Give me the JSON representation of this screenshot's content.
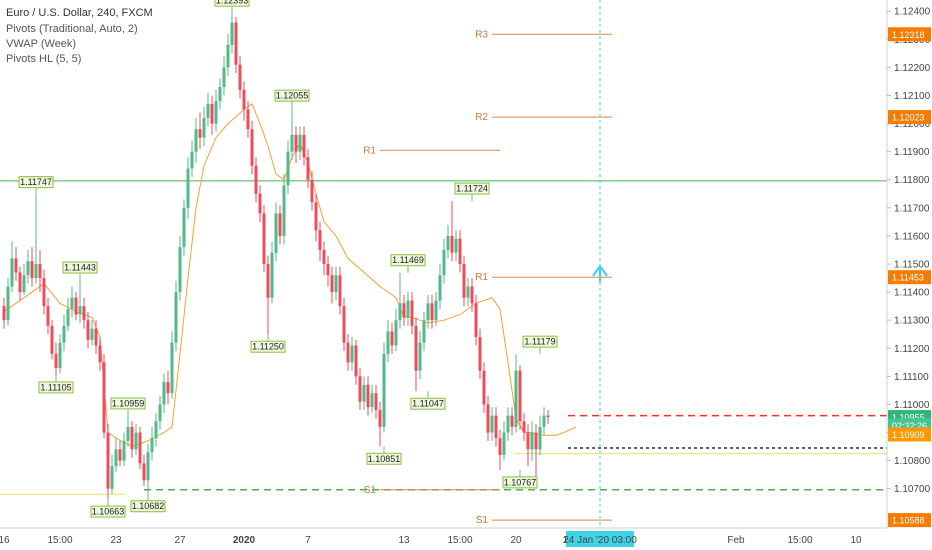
{
  "legend": {
    "title": "Euro / U.S. Dollar, 240, FXCM",
    "lines": [
      "Pivots (Traditional, Auto, 2)",
      "VWAP (Week)",
      "Pivots HL (5, 5)"
    ]
  },
  "colors": {
    "bull": "#53b987",
    "bear": "#eb4d5c",
    "vwap": "#f7a035",
    "pivot": "#d8874a",
    "pivot_label": "#c97a3a",
    "green_line": "#4caf50",
    "red_line": "#ff2a2a",
    "yellow_line": "#f5e05a",
    "cyan": "#3fd3e6",
    "hl_bg": "#eef8de",
    "hl_border": "#8cbf3f",
    "price_tag": "#f57c00",
    "last_price_tag": "#2eb67d",
    "countdown_tag": "#48c492",
    "prev_tag": "#ff9800"
  },
  "chart_data": {
    "type": "candlestick",
    "title": "Euro / U.S. Dollar, 240, FXCM",
    "ylim": [
      1.1056,
      1.1244
    ],
    "y_ticks": [
      1.107,
      1.108,
      1.109,
      1.11,
      1.111,
      1.112,
      1.113,
      1.114,
      1.115,
      1.116,
      1.117,
      1.118,
      1.119,
      1.12,
      1.121,
      1.122,
      1.123,
      1.124
    ],
    "y_tick_labels": [
      "1.10700",
      "1.10800",
      "1.10900",
      "1.11000",
      "1.11100",
      "1.11200",
      "1.11300",
      "1.11400",
      "1.11500",
      "1.11600",
      "1.11700",
      "1.11800",
      "1.11900",
      "1.12000",
      "1.12100",
      "1.12200",
      "1.12300",
      "1.12400"
    ],
    "x_tick_labels": [
      "16",
      "15:00",
      "23",
      "27",
      "2020",
      "7",
      "13",
      "15:00",
      "20",
      "15",
      "Feb",
      "15:00",
      "10"
    ],
    "x_tick_index": [
      0,
      14,
      28,
      44,
      60,
      76,
      100,
      114,
      128,
      141,
      183,
      199,
      213
    ],
    "price_axis_tags": [
      {
        "label": "1.12318",
        "value": 1.12318,
        "kind": "pivot"
      },
      {
        "label": "1.12023",
        "value": 1.12023,
        "kind": "pivot"
      },
      {
        "label": "1.11453",
        "value": 1.11453,
        "kind": "pivot"
      },
      {
        "label": "1.10955",
        "value": 1.10955,
        "kind": "last"
      },
      {
        "label": "02:32:26",
        "value": 1.10925,
        "kind": "countdown"
      },
      {
        "label": "1.10909",
        "value": 1.10893,
        "kind": "prev"
      },
      {
        "label": "1.10588",
        "value": 1.10588,
        "kind": "pivot"
      }
    ],
    "pivots": [
      {
        "label": "R3",
        "value": 1.12318,
        "from": 122,
        "to": 152
      },
      {
        "label": "R2",
        "value": 1.12023,
        "from": 122,
        "to": 152
      },
      {
        "label": "R1",
        "value": 1.11453,
        "from": 122,
        "to": 152
      },
      {
        "label": "S1",
        "value": 1.10588,
        "from": 122,
        "to": 152
      },
      {
        "label": "R1",
        "value": 1.11905,
        "from": 94,
        "to": 124
      },
      {
        "label": "S1",
        "value": 1.10696,
        "from": 94,
        "to": 124
      }
    ],
    "horizontal_lines": [
      {
        "value": 1.11796,
        "color": "green_line",
        "dash": false,
        "from": 0
      },
      {
        "value": 1.10696,
        "color": "green_line",
        "dash": true,
        "from": 35
      },
      {
        "value": 1.1096,
        "color": "red_line",
        "dash": true,
        "from": 141
      },
      {
        "value": 1.10845,
        "color": "navy",
        "dash": true,
        "from": 141
      },
      {
        "value": 1.10825,
        "color": "yellow_line",
        "dash": false,
        "from": 128
      },
      {
        "value": 1.1068,
        "color": "yellow_line",
        "dash": false,
        "from": 0,
        "to": 30
      }
    ],
    "pivot_hl": [
      {
        "label": "1.11747",
        "i": 8,
        "value": 1.11747,
        "pos": "above"
      },
      {
        "label": "1.11443",
        "i": 19,
        "value": 1.11443,
        "pos": "above"
      },
      {
        "label": "1.11105",
        "i": 13,
        "value": 1.11105,
        "pos": "below"
      },
      {
        "label": "1.10959",
        "i": 31,
        "value": 1.10959,
        "pos": "above"
      },
      {
        "label": "1.10663",
        "i": 26,
        "value": 1.10663,
        "pos": "below"
      },
      {
        "label": "1.10682",
        "i": 36,
        "value": 1.10682,
        "pos": "below"
      },
      {
        "label": "1.12393",
        "i": 57,
        "value": 1.12393,
        "pos": "above"
      },
      {
        "label": "1.11250",
        "i": 66,
        "value": 1.1125,
        "pos": "below"
      },
      {
        "label": "1.12055",
        "i": 72,
        "value": 1.12055,
        "pos": "above"
      },
      {
        "label": "1.11469",
        "i": 101,
        "value": 1.11469,
        "pos": "above"
      },
      {
        "label": "1.10851",
        "i": 95,
        "value": 1.10851,
        "pos": "below"
      },
      {
        "label": "1.11047",
        "i": 106,
        "value": 1.11047,
        "pos": "below"
      },
      {
        "label": "1.11724",
        "i": 117,
        "value": 1.11724,
        "pos": "above"
      },
      {
        "label": "1.10767",
        "i": 129,
        "value": 1.10767,
        "pos": "below"
      },
      {
        "label": "1.11179",
        "i": 134,
        "value": 1.11179,
        "pos": "above"
      }
    ],
    "cursor": {
      "label": "24 Jan '20  03:00",
      "i": 149
    },
    "vwap": [
      [
        0,
        1.1133
      ],
      [
        5,
        1.1138
      ],
      [
        10,
        1.1143
      ],
      [
        14,
        1.1136
      ],
      [
        18,
        1.1133
      ],
      [
        22,
        1.1131
      ],
      [
        24,
        1.1124
      ],
      [
        26,
        1.109
      ],
      [
        28,
        1.1088
      ],
      [
        32,
        1.1085
      ],
      [
        36,
        1.1087
      ],
      [
        40,
        1.109
      ],
      [
        42,
        1.1092
      ],
      [
        44,
        1.1118
      ],
      [
        46,
        1.1145
      ],
      [
        48,
        1.117
      ],
      [
        50,
        1.1185
      ],
      [
        53,
        1.1195
      ],
      [
        56,
        1.12
      ],
      [
        60,
        1.1205
      ],
      [
        62,
        1.1207
      ],
      [
        64,
        1.12
      ],
      [
        66,
        1.1192
      ],
      [
        68,
        1.1182
      ],
      [
        70,
        1.118
      ],
      [
        72,
        1.1188
      ],
      [
        74,
        1.1193
      ],
      [
        76,
        1.1186
      ],
      [
        78,
        1.1175
      ],
      [
        80,
        1.1165
      ],
      [
        83,
        1.116
      ],
      [
        86,
        1.1152
      ],
      [
        90,
        1.1147
      ],
      [
        94,
        1.1142
      ],
      [
        98,
        1.1138
      ],
      [
        100,
        1.1131
      ],
      [
        102,
        1.1131
      ],
      [
        104,
        1.113
      ],
      [
        106,
        1.1129
      ],
      [
        110,
        1.113
      ],
      [
        114,
        1.1132
      ],
      [
        118,
        1.1136
      ],
      [
        122,
        1.1138
      ],
      [
        124,
        1.1134
      ],
      [
        126,
        1.1115
      ],
      [
        128,
        1.1095
      ],
      [
        130,
        1.109
      ],
      [
        132,
        1.109
      ],
      [
        134,
        1.1089
      ],
      [
        138,
        1.1089
      ],
      [
        140,
        1.109
      ],
      [
        143,
        1.1092
      ]
    ],
    "candles": [
      [
        1.1135,
        1.113,
        1.1138,
        1.1127
      ],
      [
        1.113,
        1.1142,
        1.1145,
        1.1128
      ],
      [
        1.1142,
        1.1152,
        1.1158,
        1.114
      ],
      [
        1.1152,
        1.1147,
        1.1156,
        1.1144
      ],
      [
        1.1147,
        1.114,
        1.1149,
        1.1137
      ],
      [
        1.114,
        1.1146,
        1.115,
        1.1139
      ],
      [
        1.1146,
        1.1151,
        1.1155,
        1.1143
      ],
      [
        1.1151,
        1.1145,
        1.1156,
        1.1142
      ],
      [
        1.1145,
        1.115,
        1.11747,
        1.1143
      ],
      [
        1.115,
        1.1145,
        1.1155,
        1.114
      ],
      [
        1.1145,
        1.1135,
        1.1148,
        1.1132
      ],
      [
        1.1135,
        1.1128,
        1.1138,
        1.1125
      ],
      [
        1.1128,
        1.1118,
        1.113,
        1.1116
      ],
      [
        1.1118,
        1.1113,
        1.1122,
        1.11105
      ],
      [
        1.1113,
        1.1122,
        1.1125,
        1.1111
      ],
      [
        1.1122,
        1.1128,
        1.1132,
        1.1119
      ],
      [
        1.1128,
        1.1134,
        1.1138,
        1.1126
      ],
      [
        1.1134,
        1.1138,
        1.1142,
        1.1131
      ],
      [
        1.1138,
        1.1132,
        1.114,
        1.113
      ],
      [
        1.1132,
        1.1135,
        1.11443,
        1.1129
      ],
      [
        1.1135,
        1.113,
        1.1138,
        1.1127
      ],
      [
        1.113,
        1.1123,
        1.1133,
        1.112
      ],
      [
        1.1123,
        1.1127,
        1.113,
        1.1121
      ],
      [
        1.1127,
        1.1121,
        1.113,
        1.1118
      ],
      [
        1.1121,
        1.1115,
        1.1124,
        1.1112
      ],
      [
        1.1115,
        1.109,
        1.1118,
        1.1088
      ],
      [
        1.109,
        1.107,
        1.1093,
        1.10663
      ],
      [
        1.107,
        1.1078,
        1.1082,
        1.1068
      ],
      [
        1.1078,
        1.1084,
        1.1088,
        1.1076
      ],
      [
        1.1084,
        1.108,
        1.1087,
        1.1078
      ],
      [
        1.108,
        1.1087,
        1.109,
        1.1078
      ],
      [
        1.1087,
        1.1092,
        1.10959,
        1.1085
      ],
      [
        1.1092,
        1.1084,
        1.1094,
        1.1081
      ],
      [
        1.1084,
        1.109,
        1.1093,
        1.1082
      ],
      [
        1.109,
        1.1079,
        1.1092,
        1.1077
      ],
      [
        1.1079,
        1.1073,
        1.1082,
        1.1071
      ],
      [
        1.1073,
        1.1083,
        1.1086,
        1.10682
      ],
      [
        1.1083,
        1.1088,
        1.1092,
        1.108
      ],
      [
        1.1088,
        1.1094,
        1.1097,
        1.1085
      ],
      [
        1.1094,
        1.11,
        1.1103,
        1.1091
      ],
      [
        1.11,
        1.1108,
        1.1111,
        1.1097
      ],
      [
        1.1108,
        1.1104,
        1.1112,
        1.11
      ],
      [
        1.1104,
        1.1122,
        1.1126,
        1.1102
      ],
      [
        1.1122,
        1.114,
        1.1144,
        1.1119
      ],
      [
        1.114,
        1.1156,
        1.116,
        1.1137
      ],
      [
        1.1156,
        1.117,
        1.1173,
        1.1153
      ],
      [
        1.117,
        1.1184,
        1.1188,
        1.1166
      ],
      [
        1.1184,
        1.119,
        1.1194,
        1.1181
      ],
      [
        1.119,
        1.1198,
        1.1202,
        1.1186
      ],
      [
        1.1198,
        1.1195,
        1.1204,
        1.1191
      ],
      [
        1.1195,
        1.1202,
        1.1206,
        1.1192
      ],
      [
        1.1202,
        1.1207,
        1.1211,
        1.1199
      ],
      [
        1.1207,
        1.12,
        1.121,
        1.1196
      ],
      [
        1.12,
        1.1208,
        1.1212,
        1.1197
      ],
      [
        1.1208,
        1.1213,
        1.1216,
        1.1205
      ],
      [
        1.1213,
        1.122,
        1.1224,
        1.121
      ],
      [
        1.122,
        1.1228,
        1.1232,
        1.1217
      ],
      [
        1.1228,
        1.1236,
        1.12393,
        1.1225
      ],
      [
        1.1236,
        1.1221,
        1.1238,
        1.1218
      ],
      [
        1.1221,
        1.1212,
        1.1224,
        1.1209
      ],
      [
        1.1212,
        1.1205,
        1.1215,
        1.1201
      ],
      [
        1.1205,
        1.1198,
        1.1208,
        1.1195
      ],
      [
        1.1198,
        1.1185,
        1.1201,
        1.1182
      ],
      [
        1.1185,
        1.1175,
        1.1188,
        1.1172
      ],
      [
        1.1175,
        1.1168,
        1.1178,
        1.1165
      ],
      [
        1.1168,
        1.115,
        1.1171,
        1.1147
      ],
      [
        1.115,
        1.1138,
        1.1153,
        1.1125
      ],
      [
        1.1138,
        1.1154,
        1.1158,
        1.1136
      ],
      [
        1.1154,
        1.1168,
        1.1172,
        1.1151
      ],
      [
        1.1168,
        1.116,
        1.1171,
        1.1157
      ],
      [
        1.116,
        1.1178,
        1.1182,
        1.1157
      ],
      [
        1.1178,
        1.119,
        1.1194,
        1.1175
      ],
      [
        1.119,
        1.1196,
        1.12055,
        1.1187
      ],
      [
        1.1196,
        1.119,
        1.1199,
        1.1186
      ],
      [
        1.119,
        1.1196,
        1.1199,
        1.1187
      ],
      [
        1.1196,
        1.1188,
        1.1199,
        1.1185
      ],
      [
        1.1188,
        1.118,
        1.1191,
        1.1177
      ],
      [
        1.118,
        1.1172,
        1.1183,
        1.1169
      ],
      [
        1.1172,
        1.1162,
        1.1175,
        1.1158
      ],
      [
        1.1162,
        1.1155,
        1.1165,
        1.1151
      ],
      [
        1.1155,
        1.115,
        1.1158,
        1.1146
      ],
      [
        1.115,
        1.1146,
        1.1153,
        1.1142
      ],
      [
        1.1146,
        1.114,
        1.1149,
        1.1136
      ],
      [
        1.114,
        1.1146,
        1.1149,
        1.1137
      ],
      [
        1.1146,
        1.1135,
        1.1149,
        1.1132
      ],
      [
        1.1135,
        1.1122,
        1.1138,
        1.1119
      ],
      [
        1.1122,
        1.1115,
        1.1125,
        1.1112
      ],
      [
        1.1115,
        1.1121,
        1.1124,
        1.1112
      ],
      [
        1.1121,
        1.111,
        1.1123,
        1.1107
      ],
      [
        1.111,
        1.1101,
        1.1113,
        1.1098
      ],
      [
        1.1101,
        1.1107,
        1.111,
        1.1098
      ],
      [
        1.1107,
        1.1099,
        1.111,
        1.1096
      ],
      [
        1.1099,
        1.1104,
        1.1107,
        1.1097
      ],
      [
        1.1104,
        1.1098,
        1.1107,
        1.1095
      ],
      [
        1.1098,
        1.1092,
        1.1101,
        1.10851
      ],
      [
        1.1092,
        1.1118,
        1.1122,
        1.109
      ],
      [
        1.1118,
        1.1126,
        1.113,
        1.1115
      ],
      [
        1.1126,
        1.1121,
        1.1129,
        1.1118
      ],
      [
        1.1121,
        1.113,
        1.1134,
        1.1119
      ],
      [
        1.113,
        1.1136,
        1.11469,
        1.1127
      ],
      [
        1.1136,
        1.1131,
        1.1139,
        1.1128
      ],
      [
        1.1131,
        1.1137,
        1.114,
        1.1128
      ],
      [
        1.1137,
        1.1128,
        1.114,
        1.1125
      ],
      [
        1.1128,
        1.1112,
        1.1131,
        1.11047
      ],
      [
        1.1112,
        1.1122,
        1.1126,
        1.1109
      ],
      [
        1.1122,
        1.113,
        1.1133,
        1.1119
      ],
      [
        1.113,
        1.1136,
        1.1139,
        1.1127
      ],
      [
        1.1136,
        1.113,
        1.1139,
        1.1127
      ],
      [
        1.113,
        1.1137,
        1.114,
        1.1128
      ],
      [
        1.1137,
        1.1146,
        1.115,
        1.1134
      ],
      [
        1.1146,
        1.1155,
        1.1159,
        1.1143
      ],
      [
        1.1155,
        1.116,
        1.1164,
        1.1152
      ],
      [
        1.116,
        1.1154,
        1.11724,
        1.1151
      ],
      [
        1.1154,
        1.1159,
        1.1162,
        1.1151
      ],
      [
        1.1159,
        1.115,
        1.1162,
        1.1147
      ],
      [
        1.115,
        1.1138,
        1.1153,
        1.1135
      ],
      [
        1.1138,
        1.1142,
        1.1145,
        1.1135
      ],
      [
        1.1142,
        1.1136,
        1.1145,
        1.1133
      ],
      [
        1.1136,
        1.1124,
        1.1139,
        1.1121
      ],
      [
        1.1124,
        1.1112,
        1.1127,
        1.1109
      ],
      [
        1.1112,
        1.11,
        1.1115,
        1.1097
      ],
      [
        1.11,
        1.109,
        1.1103,
        1.1087
      ],
      [
        1.109,
        1.1096,
        1.1099,
        1.1087
      ],
      [
        1.1096,
        1.1088,
        1.1099,
        1.1085
      ],
      [
        1.1088,
        1.1082,
        1.1091,
        1.10767
      ],
      [
        1.1082,
        1.109,
        1.1094,
        1.108
      ],
      [
        1.109,
        1.1096,
        1.1099,
        1.1087
      ],
      [
        1.1096,
        1.1092,
        1.1099,
        1.1089
      ],
      [
        1.1092,
        1.1112,
        1.11179,
        1.109
      ],
      [
        1.1112,
        1.1094,
        1.1114,
        1.1091
      ],
      [
        1.1094,
        1.109,
        1.1097,
        1.1087
      ],
      [
        1.109,
        1.1084,
        1.1093,
        1.1078
      ],
      [
        1.1084,
        1.109,
        1.1094,
        1.108
      ],
      [
        1.109,
        1.1084,
        1.1093,
        1.107
      ],
      [
        1.1084,
        1.1092,
        1.1096,
        1.1082
      ],
      [
        1.1092,
        1.1096,
        1.1099,
        1.1089
      ],
      [
        1.1096,
        1.10955,
        1.1098,
        1.1093
      ]
    ]
  }
}
